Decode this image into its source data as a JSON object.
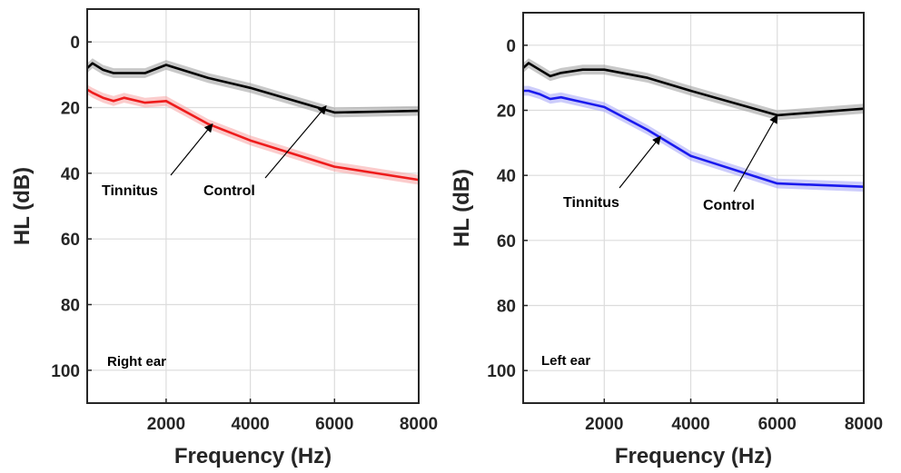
{
  "chart_data": [
    {
      "type": "line",
      "xlabel": "Frequency (Hz)",
      "ylabel": "HL (dB)",
      "xlim": [
        125,
        8000
      ],
      "ylim": [
        110,
        -10
      ],
      "y_reversed": true,
      "xticks": [
        2000,
        4000,
        6000,
        8000
      ],
      "xtick_labels": [
        "2000",
        "4000",
        "6000",
        "8000"
      ],
      "yticks": [
        0,
        20,
        40,
        60,
        80,
        100
      ],
      "ytick_labels": [
        "0",
        "20",
        "40",
        "60",
        "80",
        "100"
      ],
      "grid": true,
      "panel_label": "Right ear",
      "series": [
        {
          "name": "Control",
          "color": "#000000",
          "band_color": "#9a9a9a",
          "x": [
            125,
            250,
            500,
            750,
            1000,
            1500,
            2000,
            3000,
            4000,
            6000,
            8000
          ],
          "values": [
            8,
            6.5,
            8.5,
            9.5,
            9.5,
            9.5,
            7,
            11,
            14,
            21.5,
            21
          ],
          "band": 1.5
        },
        {
          "name": "Tinnitus",
          "color": "#ee1c1c",
          "band_color": "#f7a3a3",
          "x": [
            125,
            250,
            500,
            750,
            1000,
            1500,
            2000,
            3000,
            4000,
            6000,
            8000
          ],
          "values": [
            14.5,
            15.5,
            17,
            18,
            17,
            18.5,
            18,
            25,
            30,
            38,
            42
          ],
          "band": 1.5
        }
      ],
      "annotations": [
        {
          "text": "Tinnitus",
          "target": [
            3100,
            25
          ]
        },
        {
          "text": "Control",
          "target": [
            5800,
            19.5
          ]
        }
      ]
    },
    {
      "type": "line",
      "xlabel": "Frequency (Hz)",
      "ylabel": "HL (dB)",
      "xlim": [
        125,
        8000
      ],
      "ylim": [
        110,
        -10
      ],
      "y_reversed": true,
      "xticks": [
        2000,
        4000,
        6000,
        8000
      ],
      "xtick_labels": [
        "2000",
        "4000",
        "6000",
        "8000"
      ],
      "yticks": [
        0,
        20,
        40,
        60,
        80,
        100
      ],
      "ytick_labels": [
        "0",
        "20",
        "40",
        "60",
        "80",
        "100"
      ],
      "grid": true,
      "panel_label": "Left ear",
      "series": [
        {
          "name": "Control",
          "color": "#000000",
          "band_color": "#9a9a9a",
          "x": [
            125,
            250,
            500,
            750,
            1000,
            1500,
            2000,
            3000,
            4000,
            6000,
            8000
          ],
          "values": [
            7,
            5.5,
            7.5,
            9.5,
            8.5,
            7.5,
            7.5,
            10,
            14,
            21.5,
            19.5
          ],
          "band": 1.5
        },
        {
          "name": "Tinnitus",
          "color": "#1a1aee",
          "band_color": "#a3a3f7",
          "x": [
            125,
            250,
            500,
            750,
            1000,
            1500,
            2000,
            3000,
            4000,
            6000,
            8000
          ],
          "values": [
            14,
            14,
            15,
            16.5,
            16,
            17.5,
            19,
            26,
            34,
            42.5,
            43.5
          ],
          "band": 1.5
        }
      ],
      "annotations": [
        {
          "text": "Tinnitus",
          "target": [
            3300,
            28
          ]
        },
        {
          "text": "Control",
          "target": [
            6000,
            21.5
          ]
        }
      ]
    }
  ]
}
